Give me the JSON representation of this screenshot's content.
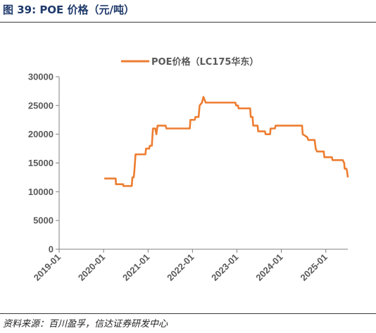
{
  "figure": {
    "title": "图 39:  POE 价格（元/吨）",
    "source": "资料来源：百川盈孚，信达证券研发中心"
  },
  "colors": {
    "series": "#ED7D31",
    "axis": "#808080",
    "tick_text": "#595959",
    "title": "#1F3A6B"
  },
  "chart_data": {
    "type": "line",
    "title": "",
    "xlabel": "",
    "ylabel": "",
    "x_type": "date",
    "xlim": [
      "2019-01-01",
      "2025-07-01"
    ],
    "ylim": [
      0,
      30000
    ],
    "y_ticks": [
      0,
      5000,
      10000,
      15000,
      20000,
      25000,
      30000
    ],
    "x_ticks": [
      "2019-01",
      "2020-01",
      "2021-01",
      "2022-01",
      "2023-01",
      "2024-01",
      "2025-01"
    ],
    "legend_position": "top-center",
    "grid": false,
    "series": [
      {
        "name": "POE价格（LC175华东）",
        "points": [
          [
            "2020-01-07",
            12300
          ],
          [
            "2020-04-10",
            12300
          ],
          [
            "2020-04-12",
            11300
          ],
          [
            "2020-06-10",
            11300
          ],
          [
            "2020-06-12",
            11000
          ],
          [
            "2020-08-20",
            11000
          ],
          [
            "2020-08-25",
            12500
          ],
          [
            "2020-09-05",
            12500
          ],
          [
            "2020-09-10",
            13500
          ],
          [
            "2020-09-20",
            16500
          ],
          [
            "2020-12-10",
            16500
          ],
          [
            "2020-12-15",
            17500
          ],
          [
            "2021-01-10",
            17500
          ],
          [
            "2021-01-15",
            18000
          ],
          [
            "2021-02-01",
            18000
          ],
          [
            "2021-02-10",
            21000
          ],
          [
            "2021-03-01",
            21000
          ],
          [
            "2021-03-10",
            20000
          ],
          [
            "2021-03-20",
            21500
          ],
          [
            "2021-05-25",
            21500
          ],
          [
            "2021-06-01",
            21000
          ],
          [
            "2021-12-10",
            21000
          ],
          [
            "2021-12-15",
            22500
          ],
          [
            "2022-01-20",
            22500
          ],
          [
            "2022-01-25",
            23000
          ],
          [
            "2022-02-20",
            23000
          ],
          [
            "2022-03-01",
            25000
          ],
          [
            "2022-03-20",
            25500
          ],
          [
            "2022-04-01",
            26500
          ],
          [
            "2022-04-10",
            26000
          ],
          [
            "2022-04-20",
            25500
          ],
          [
            "2022-12-20",
            25500
          ],
          [
            "2022-12-25",
            25000
          ],
          [
            "2023-01-10",
            25000
          ],
          [
            "2023-01-15",
            24500
          ],
          [
            "2023-04-20",
            24500
          ],
          [
            "2023-04-25",
            23000
          ],
          [
            "2023-05-10",
            23000
          ],
          [
            "2023-05-15",
            21500
          ],
          [
            "2023-06-20",
            21500
          ],
          [
            "2023-06-25",
            20500
          ],
          [
            "2023-08-20",
            20500
          ],
          [
            "2023-08-25",
            20000
          ],
          [
            "2023-10-01",
            20000
          ],
          [
            "2023-10-05",
            21000
          ],
          [
            "2023-11-10",
            21000
          ],
          [
            "2023-11-15",
            21500
          ],
          [
            "2024-06-20",
            21500
          ],
          [
            "2024-06-25",
            20000
          ],
          [
            "2024-08-01",
            19500
          ],
          [
            "2024-08-10",
            19000
          ],
          [
            "2024-10-01",
            19000
          ],
          [
            "2024-10-10",
            17500
          ],
          [
            "2024-10-20",
            17000
          ],
          [
            "2024-12-15",
            17000
          ],
          [
            "2024-12-20",
            16000
          ],
          [
            "2025-02-20",
            16000
          ],
          [
            "2025-02-25",
            15500
          ],
          [
            "2025-05-20",
            15500
          ],
          [
            "2025-06-01",
            15000
          ],
          [
            "2025-06-05",
            14000
          ],
          [
            "2025-06-20",
            14000
          ],
          [
            "2025-06-25",
            13500
          ],
          [
            "2025-07-01",
            12500
          ]
        ]
      }
    ]
  }
}
